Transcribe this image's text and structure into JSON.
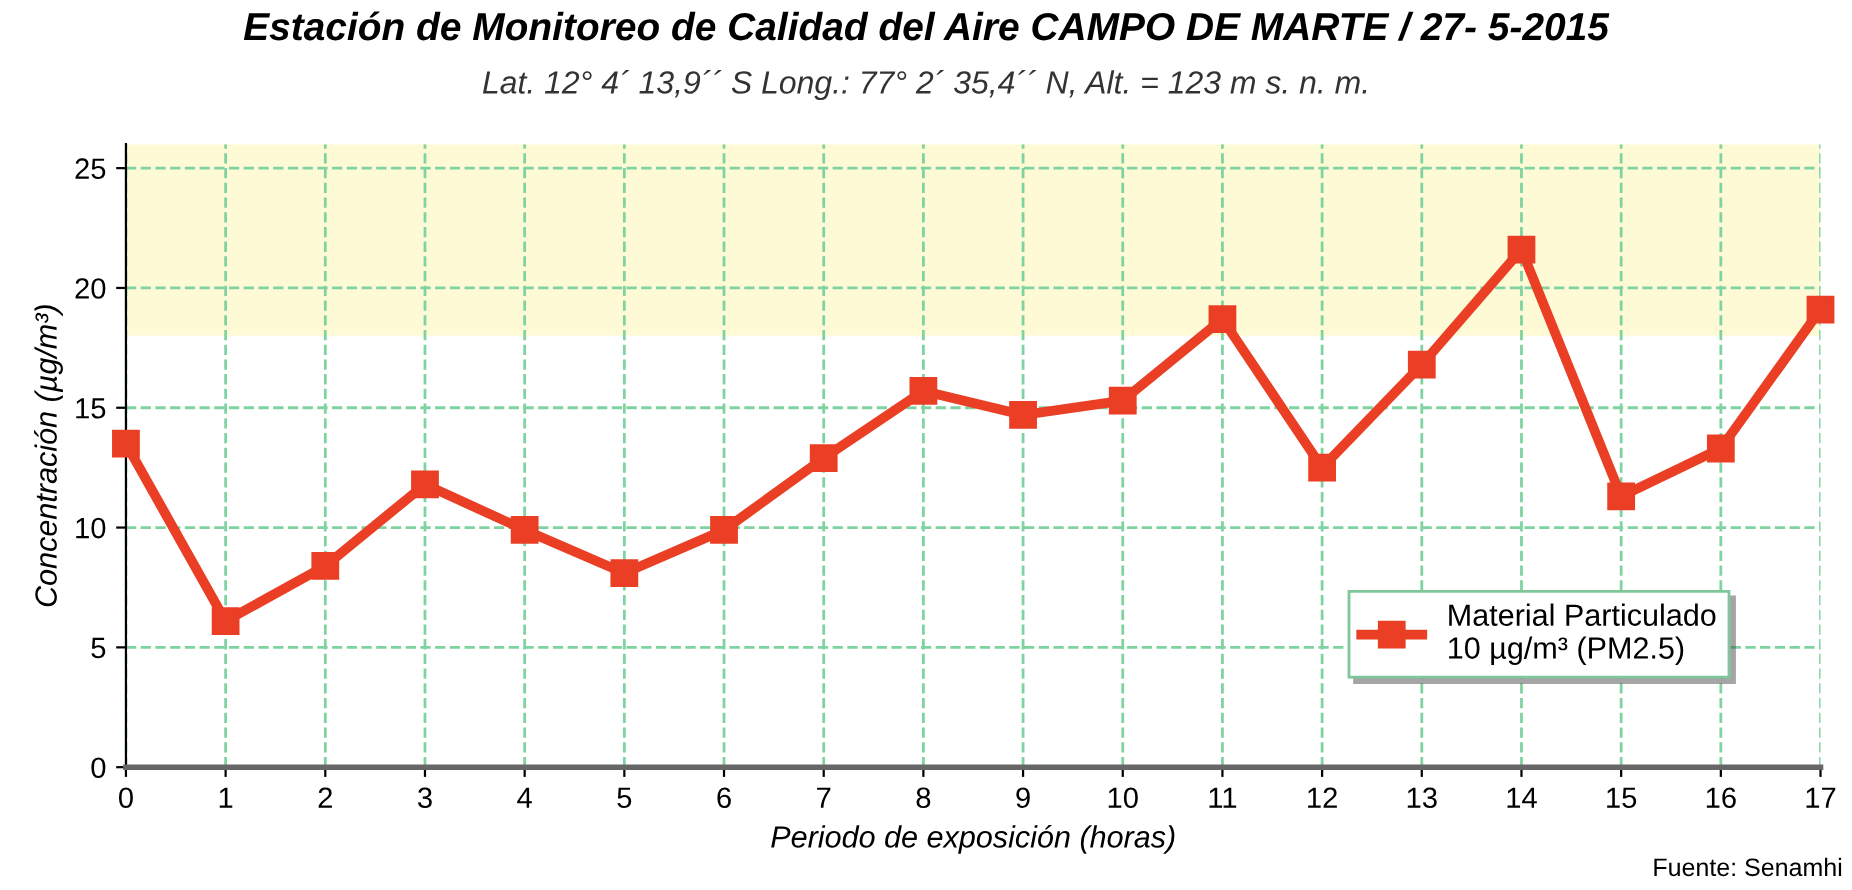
{
  "chart_data": {
    "type": "line",
    "title": "Estación de Monitoreo de Calidad del Aire CAMPO DE MARTE / 27- 5-2015",
    "subtitle": "Lat. 12° 4´ 13,9´´ S Long.: 77° 2´ 35,4´´ N, Alt. = 123 m s. n. m.",
    "xlabel": "Periodo de exposición (horas)",
    "ylabel": "Concentración (µg/m³)",
    "annotations": [
      "Fuente: Senamhi"
    ],
    "x": [
      0,
      1,
      2,
      3,
      4,
      5,
      6,
      7,
      8,
      9,
      10,
      11,
      12,
      13,
      14,
      15,
      16,
      17
    ],
    "series": [
      {
        "name": "Material Particulado\n10 µg/m³ (PM2.5)",
        "color": "#ea3f24",
        "values": [
          13.5,
          6.1,
          8.4,
          11.8,
          9.9,
          8.1,
          9.9,
          12.9,
          15.7,
          14.7,
          15.3,
          18.7,
          12.5,
          16.8,
          21.6,
          11.3,
          13.3,
          19.1
        ]
      }
    ],
    "xlim": [
      0,
      17
    ],
    "ylim": [
      0,
      26
    ],
    "xticks": [
      0,
      1,
      2,
      3,
      4,
      5,
      6,
      7,
      8,
      9,
      10,
      11,
      12,
      13,
      14,
      15,
      16,
      17
    ],
    "yticks": [
      0,
      5,
      10,
      15,
      20,
      25
    ],
    "bands": [
      {
        "axis": "y",
        "from": 18,
        "to": 26,
        "color": "#fffad6"
      }
    ],
    "grid": true,
    "legend": "bottom right",
    "marker": "square",
    "line_style": "solid"
  }
}
